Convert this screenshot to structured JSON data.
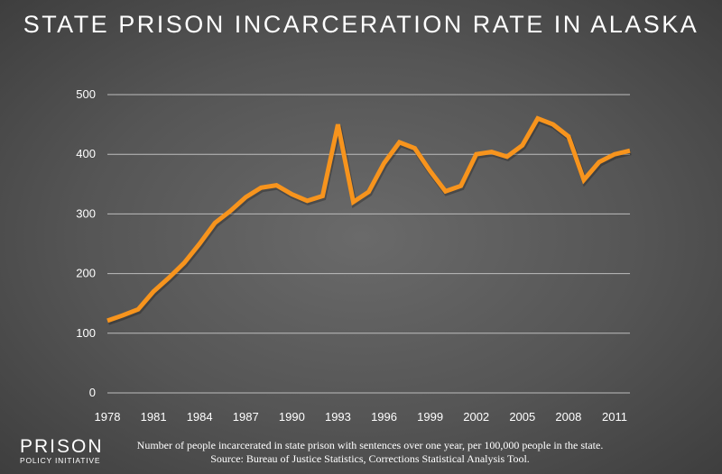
{
  "chart_data": {
    "type": "line",
    "title": "STATE PRISON INCARCERATION RATE IN ALASKA",
    "x": [
      1978,
      1979,
      1980,
      1981,
      1982,
      1983,
      1984,
      1985,
      1986,
      1987,
      1988,
      1989,
      1990,
      1991,
      1992,
      1993,
      1994,
      1995,
      1996,
      1997,
      1998,
      1999,
      2000,
      2001,
      2002,
      2003,
      2004,
      2005,
      2006,
      2007,
      2008,
      2009,
      2010,
      2011,
      2012
    ],
    "values": [
      121,
      130,
      140,
      170,
      193,
      218,
      250,
      285,
      305,
      328,
      344,
      348,
      333,
      322,
      330,
      450,
      320,
      337,
      385,
      420,
      410,
      372,
      338,
      347,
      400,
      404,
      396,
      415,
      460,
      450,
      430,
      357,
      387,
      400,
      406
    ],
    "xticks": [
      "1978",
      "1981",
      "1984",
      "1987",
      "1990",
      "1993",
      "1996",
      "1999",
      "2002",
      "2005",
      "2008",
      "2011"
    ],
    "yticks": [
      "0",
      "100",
      "200",
      "300",
      "400",
      "500"
    ],
    "ylim": [
      0,
      500
    ],
    "xlim": [
      1978,
      2012
    ],
    "grid": true,
    "line_color": "#f7941d"
  },
  "footer": {
    "note": "Number of people incarcerated in state prison with sentences over one year, per 100,000 people in the state.",
    "source": "Source: Bureau of Justice Statistics, Corrections Statistical Analysis Tool."
  },
  "logo": {
    "line1": "PRISON",
    "line2": "POLICY INITIATIVE"
  }
}
